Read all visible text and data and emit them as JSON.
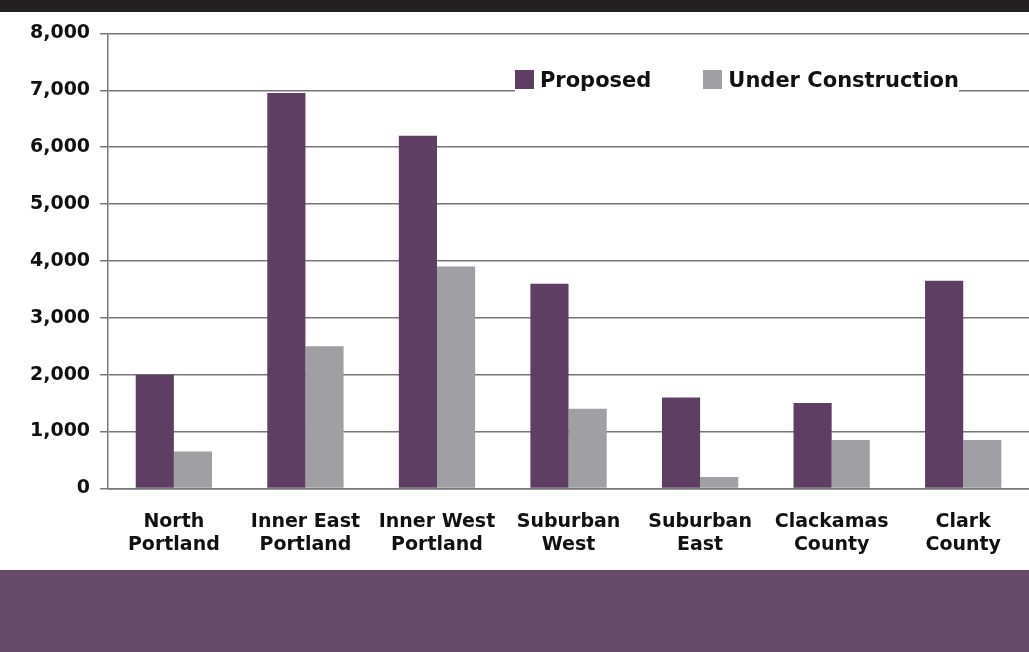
{
  "chart_data": {
    "type": "bar",
    "categories": [
      "North Portland",
      "Inner East Portland",
      "Inner West Portland",
      "Suburban West",
      "Suburban East",
      "Clackamas County",
      "Clark County"
    ],
    "series": [
      {
        "name": "Proposed",
        "color": "#5e3e62",
        "values": [
          2000,
          6950,
          6200,
          3600,
          1600,
          1500,
          3650
        ]
      },
      {
        "name": "Under Construction",
        "color": "#a0a0a4",
        "values": [
          650,
          2500,
          3900,
          1400,
          200,
          850,
          850
        ]
      }
    ],
    "ylim": [
      0,
      8000
    ],
    "yticks": [
      {
        "value": 0,
        "label": "0"
      },
      {
        "value": 1000,
        "label": "1,000"
      },
      {
        "value": 2000,
        "label": "2,000"
      },
      {
        "value": 3000,
        "label": "3,000"
      },
      {
        "value": 4000,
        "label": "4,000"
      },
      {
        "value": 5000,
        "label": "5,000"
      },
      {
        "value": 6000,
        "label": "6,000"
      },
      {
        "value": 7000,
        "label": "7,000"
      },
      {
        "value": 8000,
        "label": "8,000"
      }
    ],
    "grid": "y",
    "legend": "top right"
  }
}
